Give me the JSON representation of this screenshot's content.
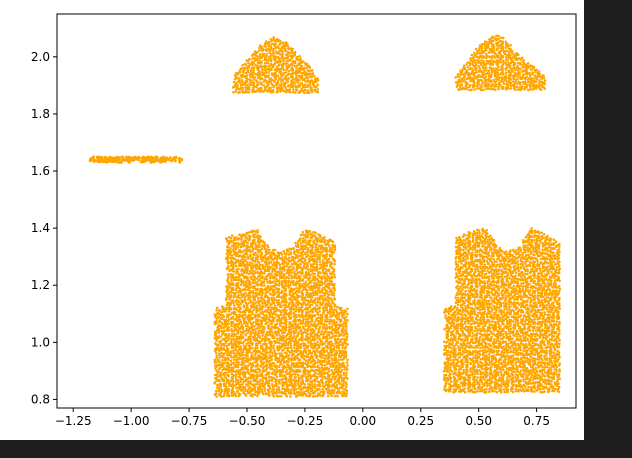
{
  "chart_data": {
    "type": "scatter",
    "title": "",
    "xlabel": "",
    "ylabel": "",
    "xlim": [
      -1.32,
      0.92
    ],
    "ylim": [
      0.77,
      2.15
    ],
    "x_ticks": [
      "−1.25",
      "−1.00",
      "−0.75",
      "−0.50",
      "−0.25",
      "0.00",
      "0.25",
      "0.50",
      "0.75"
    ],
    "x_tick_values": [
      -1.25,
      -1.0,
      -0.75,
      -0.5,
      -0.25,
      0.0,
      0.25,
      0.5,
      0.75
    ],
    "y_ticks": [
      "0.8",
      "1.0",
      "1.2",
      "1.4",
      "1.6",
      "1.8",
      "2.0"
    ],
    "y_tick_values": [
      0.8,
      1.0,
      1.2,
      1.4,
      1.6,
      1.8,
      2.0
    ],
    "grid": false,
    "legend": "none",
    "marker_color": "#FFA500",
    "series": [
      {
        "shape": "strap",
        "points": [
          [
            -1.18,
            1.645
          ],
          [
            -1.12,
            1.64
          ],
          [
            -1.05,
            1.645
          ],
          [
            -0.98,
            1.64
          ],
          [
            -0.92,
            1.645
          ],
          [
            -0.86,
            1.64
          ],
          [
            -0.8,
            1.645
          ],
          [
            -0.78,
            1.64
          ]
        ]
      },
      {
        "shape": "cap-left",
        "outline": [
          [
            -0.56,
            1.87
          ],
          [
            -0.56,
            1.93
          ],
          [
            -0.47,
            2.02
          ],
          [
            -0.43,
            2.05
          ],
          [
            -0.38,
            2.07
          ],
          [
            -0.33,
            2.05
          ],
          [
            -0.28,
            2.01
          ],
          [
            -0.19,
            1.93
          ],
          [
            -0.19,
            1.87
          ]
        ]
      },
      {
        "shape": "cap-right",
        "outline": [
          [
            0.4,
            1.88
          ],
          [
            0.4,
            1.93
          ],
          [
            0.49,
            2.03
          ],
          [
            0.53,
            2.06
          ],
          [
            0.58,
            2.08
          ],
          [
            0.62,
            2.06
          ],
          [
            0.67,
            2.01
          ],
          [
            0.79,
            1.93
          ],
          [
            0.79,
            1.88
          ]
        ]
      },
      {
        "shape": "vest-left",
        "outline": [
          [
            -0.64,
            0.81
          ],
          [
            -0.64,
            1.12
          ],
          [
            -0.59,
            1.13
          ],
          [
            -0.59,
            1.37
          ],
          [
            -0.53,
            1.38
          ],
          [
            -0.46,
            1.4
          ],
          [
            -0.43,
            1.36
          ],
          [
            -0.4,
            1.33
          ],
          [
            -0.36,
            1.32
          ],
          [
            -0.31,
            1.33
          ],
          [
            -0.28,
            1.36
          ],
          [
            -0.25,
            1.4
          ],
          [
            -0.19,
            1.38
          ],
          [
            -0.12,
            1.35
          ],
          [
            -0.12,
            1.13
          ],
          [
            -0.06,
            1.12
          ],
          [
            -0.06,
            0.81
          ]
        ]
      },
      {
        "shape": "vest-right",
        "outline": [
          [
            0.35,
            0.82
          ],
          [
            0.35,
            1.12
          ],
          [
            0.4,
            1.13
          ],
          [
            0.4,
            1.37
          ],
          [
            0.46,
            1.39
          ],
          [
            0.53,
            1.4
          ],
          [
            0.56,
            1.37
          ],
          [
            0.59,
            1.33
          ],
          [
            0.63,
            1.32
          ],
          [
            0.67,
            1.33
          ],
          [
            0.7,
            1.37
          ],
          [
            0.73,
            1.4
          ],
          [
            0.79,
            1.38
          ],
          [
            0.85,
            1.35
          ],
          [
            0.85,
            1.13
          ],
          [
            0.85,
            1.12
          ],
          [
            0.85,
            0.82
          ]
        ]
      }
    ]
  }
}
